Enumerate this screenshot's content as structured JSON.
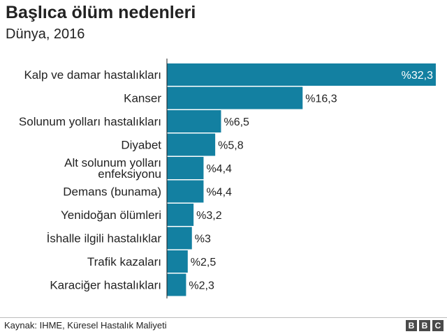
{
  "title": "Başlıca ölüm nedenleri",
  "subtitle": "Dünya, 2016",
  "source": "Kaynak: IHME, Küresel Hastalık Maliyeti",
  "logo": [
    "B",
    "B",
    "C"
  ],
  "colors": {
    "bar": "#1380a1",
    "text": "#222222",
    "axis": "#222222"
  },
  "chart_data": {
    "type": "bar",
    "orientation": "horizontal",
    "categories": [
      "Kalp ve damar hastalıkları",
      "Kanser",
      "Solunum yolları hastalıkları",
      "Diyabet",
      "Alt solunum yolları enfeksiyonu",
      "Demans (bunama)",
      "Yenidoğan ölümleri",
      "İshalle ilgili hastalıklar",
      "Trafik kazaları",
      "Karaciğer hastalıkları"
    ],
    "category_lines": [
      [
        "Kalp ve damar hastalıkları"
      ],
      [
        "Kanser"
      ],
      [
        "Solunum yolları hastalıkları"
      ],
      [
        "Diyabet"
      ],
      [
        "Alt solunum yolları",
        "enfeksiyonu"
      ],
      [
        "Demans (bunama)"
      ],
      [
        "Yenidoğan ölümleri"
      ],
      [
        "İshalle ilgili hastalıklar"
      ],
      [
        "Trafik kazaları"
      ],
      [
        "Karaciğer hastalıkları"
      ]
    ],
    "values": [
      32.3,
      16.3,
      6.5,
      5.8,
      4.4,
      4.4,
      3.2,
      3,
      2.5,
      2.3
    ],
    "value_labels": [
      "%32,3",
      "%16,3",
      "%6,5",
      "%5,8",
      "%4,4",
      "%4,4",
      "%3,2",
      "%3",
      "%2,5",
      "%2,3"
    ],
    "xlim": [
      0,
      32.3
    ],
    "grid": false,
    "legend": "none"
  }
}
